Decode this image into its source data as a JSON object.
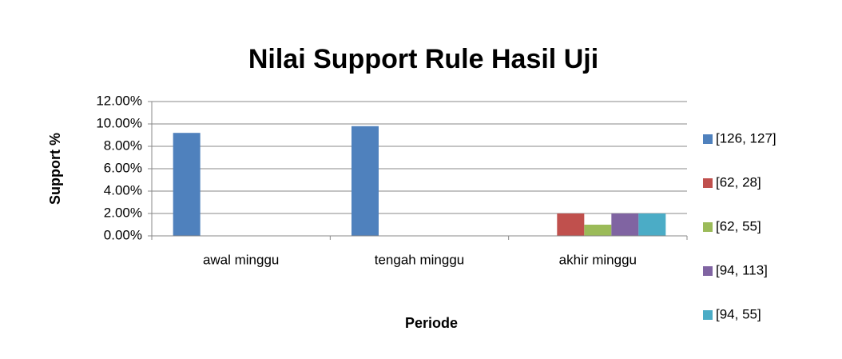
{
  "chart_data": {
    "type": "bar",
    "title": "Nilai Support Rule Hasil Uji",
    "y_label": "Support %",
    "x_label": "Periode",
    "categories": [
      "awal minggu",
      "tengah minggu",
      "akhir minggu"
    ],
    "series": [
      {
        "name": "[126, 127]",
        "color": "#4f81bd",
        "values": [
          9.2,
          9.8,
          0
        ]
      },
      {
        "name": "[62, 28]",
        "color": "#c0504d",
        "values": [
          0,
          0,
          2.0
        ]
      },
      {
        "name": "[62, 55]",
        "color": "#9bbb59",
        "values": [
          0,
          0,
          1.0
        ]
      },
      {
        "name": "[94, 113]",
        "color": "#8064a2",
        "values": [
          0,
          0,
          2.0
        ]
      },
      {
        "name": "[94, 55]",
        "color": "#4bacc6",
        "values": [
          0,
          0,
          2.0
        ]
      }
    ],
    "ylim": [
      0,
      12
    ],
    "yticks": [
      {
        "value": 0,
        "label": "0.00%"
      },
      {
        "value": 2,
        "label": "2.00%"
      },
      {
        "value": 4,
        "label": "4.00%"
      },
      {
        "value": 6,
        "label": "6.00%"
      },
      {
        "value": 8,
        "label": "8.00%"
      },
      {
        "value": 10,
        "label": "10.00%"
      },
      {
        "value": 12,
        "label": "12.00%"
      }
    ],
    "grid": true,
    "legend": "right"
  }
}
